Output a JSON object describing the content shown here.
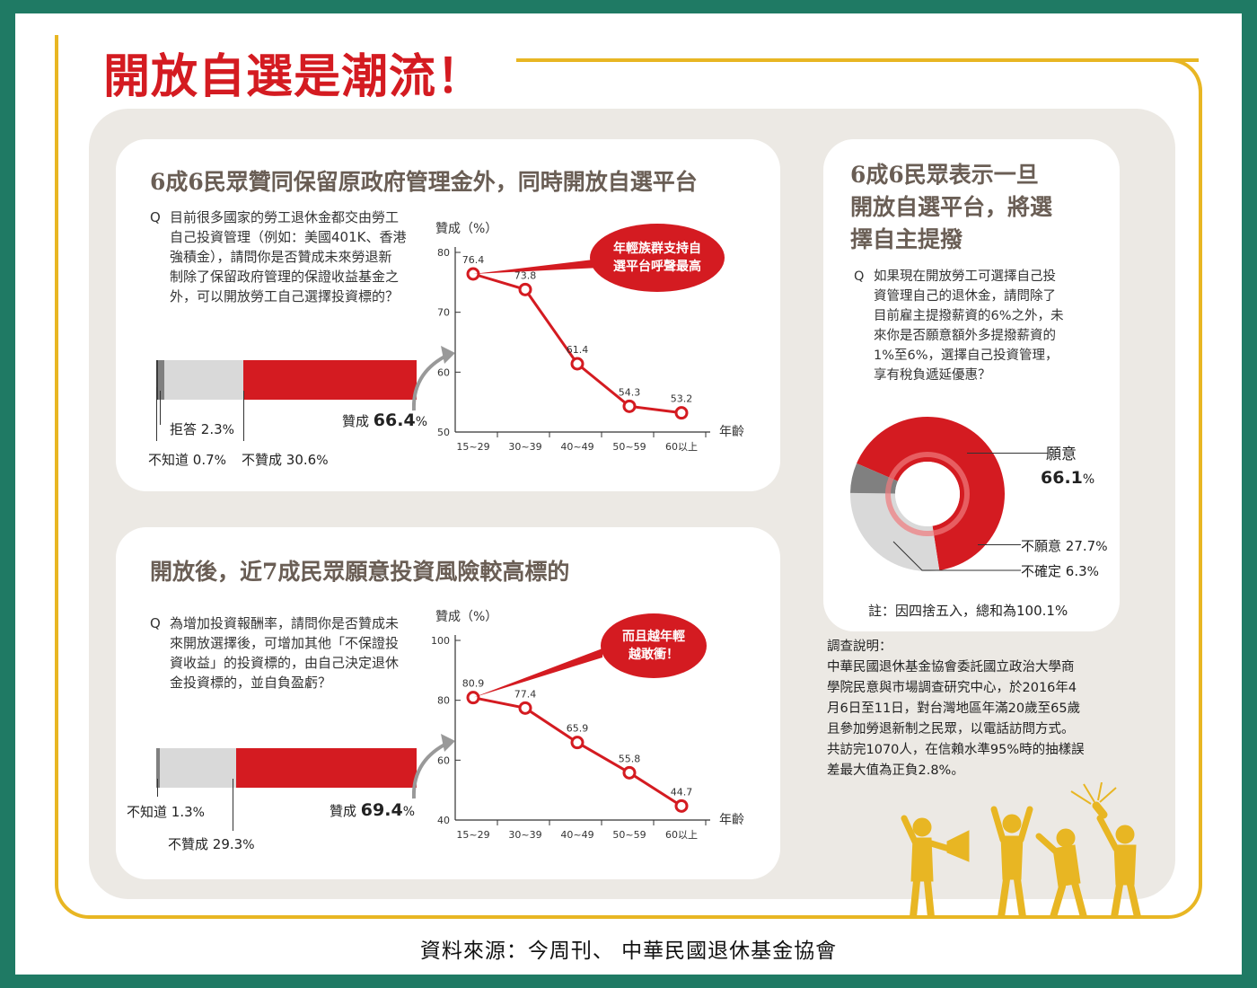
{
  "title": "開放自選是潮流！",
  "card1": {
    "title": "6成6民眾贊同保留原政府管理金外，同時開放自選平台",
    "question": [
      "目前很多國家的勞工退休金都交由勞工",
      "自己投資管理（例如：美國401K、香港",
      "強積金），請問你是否贊成未來勞退新",
      "制除了保留政府管理的保證收益基金之",
      "外，可以開放勞工自己選擇投資標的？"
    ],
    "bar": {
      "agree_label": "贊成",
      "agree_value": "66.4",
      "agree_pct": 66.4,
      "disagree_label": "不贊成",
      "disagree_value": "30.6",
      "disagree_pct": 30.6,
      "refuse_label": "拒答",
      "refuse_value": "2.3",
      "refuse_pct": 2.3,
      "unknown_label": "不知道",
      "unknown_value": "0.7",
      "unknown_pct": 0.7
    },
    "bubble": [
      "年輕族群支持自",
      "選平台呼聲最高"
    ]
  },
  "card2": {
    "title": "開放後，近7成民眾願意投資風險較高標的",
    "question": [
      "為增加投資報酬率，請問你是否贊成未",
      "來開放選擇後，可增加其他「不保證投",
      "資收益」的投資標的，由自己決定退休",
      "金投資標的，並自負盈虧？"
    ],
    "bar": {
      "agree_label": "贊成",
      "agree_value": "69.4",
      "agree_pct": 69.4,
      "disagree_label": "不贊成",
      "disagree_value": "29.3",
      "disagree_pct": 29.3,
      "unknown_label": "不知道",
      "unknown_value": "1.3",
      "unknown_pct": 1.3
    },
    "bubble": [
      "而且越年輕",
      "越敢衝！"
    ]
  },
  "card3": {
    "title": [
      "6成6民眾表示一旦",
      "開放自選平台，將選",
      "擇自主提撥"
    ],
    "question": [
      "如果現在開放勞工可選擇自己投",
      "資管理自己的退休金，請問除了",
      "目前雇主提撥薪資的6%之外，未",
      "來你是否願意額外多提撥薪資的",
      "1%至6%，選擇自己投資管理，",
      "享有稅負遞延優惠？"
    ],
    "willing_label": "願意",
    "willing_value": "66.1",
    "unwilling_label": "不願意",
    "unwilling_value": "27.7",
    "unsure_label": "不確定",
    "unsure_value": "6.3",
    "note": "註：因四捨五入，總和為100.1%"
  },
  "survey": {
    "heading": "調查說明：",
    "lines": [
      "中華民國退休基金協會委託國立政治大學商",
      "學院民意與市場調查研究中心，於2016年4",
      "月6日至11日，對台灣地區年滿20歲至65歲",
      "且參加勞退新制之民眾，以電話訪問方式。",
      "共訪完1070人，在信賴水準95%時的抽樣誤",
      "差最大值為正負2.8%。"
    ]
  },
  "source": "資料來源：今周刊、 中華民國退休基金協會",
  "percent_sign": "%",
  "colors": {
    "red": "#d41b21",
    "gray": "#d9d9d9",
    "dark_gray": "#808080",
    "gold": "#e8b623",
    "green": "#1f7a64"
  },
  "chart_data": [
    {
      "type": "line",
      "ylabel": "贊成（%）",
      "xlabel": "年齡",
      "categories": [
        "15~29",
        "30~39",
        "40~49",
        "50~59",
        "60以上"
      ],
      "values": [
        76.4,
        73.8,
        61.4,
        54.3,
        53.2
      ],
      "ylim": [
        50,
        80
      ],
      "yticks": [
        50,
        60,
        70,
        80
      ]
    },
    {
      "type": "line",
      "ylabel": "贊成（%）",
      "xlabel": "年齡",
      "categories": [
        "15~29",
        "30~39",
        "40~49",
        "50~59",
        "60以上"
      ],
      "values": [
        80.9,
        77.4,
        65.9,
        55.8,
        44.7
      ],
      "ylim": [
        40,
        100
      ],
      "yticks": [
        40,
        60,
        80,
        100
      ]
    },
    {
      "type": "pie",
      "categories": [
        "願意",
        "不願意",
        "不確定"
      ],
      "values": [
        66.1,
        27.7,
        6.3
      ]
    }
  ]
}
